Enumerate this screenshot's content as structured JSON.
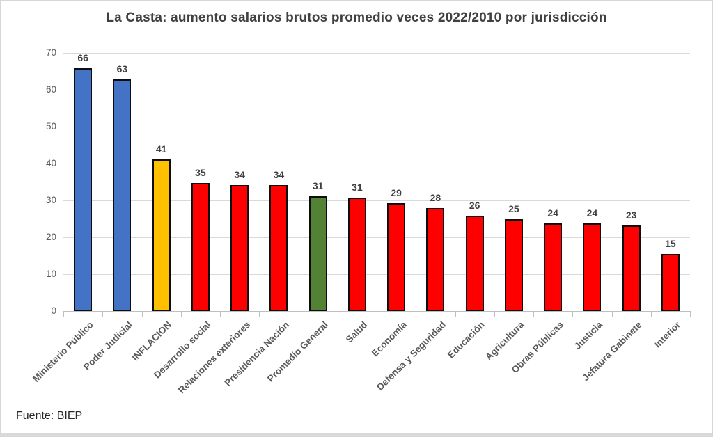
{
  "chart_data": {
    "type": "bar",
    "title": "La Casta: aumento salarios brutos promedio veces 2022/2010 por jurisdicción",
    "source": "Fuente: BIEP",
    "categories": [
      "Ministerio Público",
      "Poder Judicial",
      "INFLACION",
      "Desarrollo social",
      "Relaciones exteriores",
      "Presidencia Nación",
      "Promedio General",
      "Salud",
      "Economía",
      "Defensa y Seguridad",
      "Educación",
      "Agricultura",
      "Obras Públicas",
      "Justicia",
      "Jefatura Gabinete",
      "Interior"
    ],
    "values": [
      65.8,
      62.9,
      41.2,
      34.7,
      34.2,
      34.2,
      31.1,
      30.7,
      29.3,
      27.9,
      25.9,
      25.0,
      23.7,
      23.7,
      23.3,
      15.4
    ],
    "value_labels": [
      "66",
      "63",
      "41",
      "35",
      "34",
      "34",
      "31",
      "31",
      "29",
      "28",
      "26",
      "25",
      "24",
      "24",
      "23",
      "15"
    ],
    "bar_colors": [
      "#4472C4",
      "#4472C4",
      "#FFC000",
      "#FF0000",
      "#FF0000",
      "#FF0000",
      "#548235",
      "#FF0000",
      "#FF0000",
      "#FF0000",
      "#FF0000",
      "#FF0000",
      "#FF0000",
      "#FF0000",
      "#FF0000",
      "#FF0000"
    ],
    "xlabel": "",
    "ylabel": "",
    "ylim": [
      0,
      70
    ],
    "yticks": [
      0,
      10,
      20,
      30,
      40,
      50,
      60,
      70
    ],
    "grid": "horizontal",
    "legend": "none",
    "colors": {
      "bar_border": "#0D0D0D",
      "gridline": "#D9D9D9",
      "axis_line": "#BFBFBF",
      "title_text": "#404040",
      "tick_label_text": "#595959",
      "value_label_text": "#404040"
    }
  }
}
